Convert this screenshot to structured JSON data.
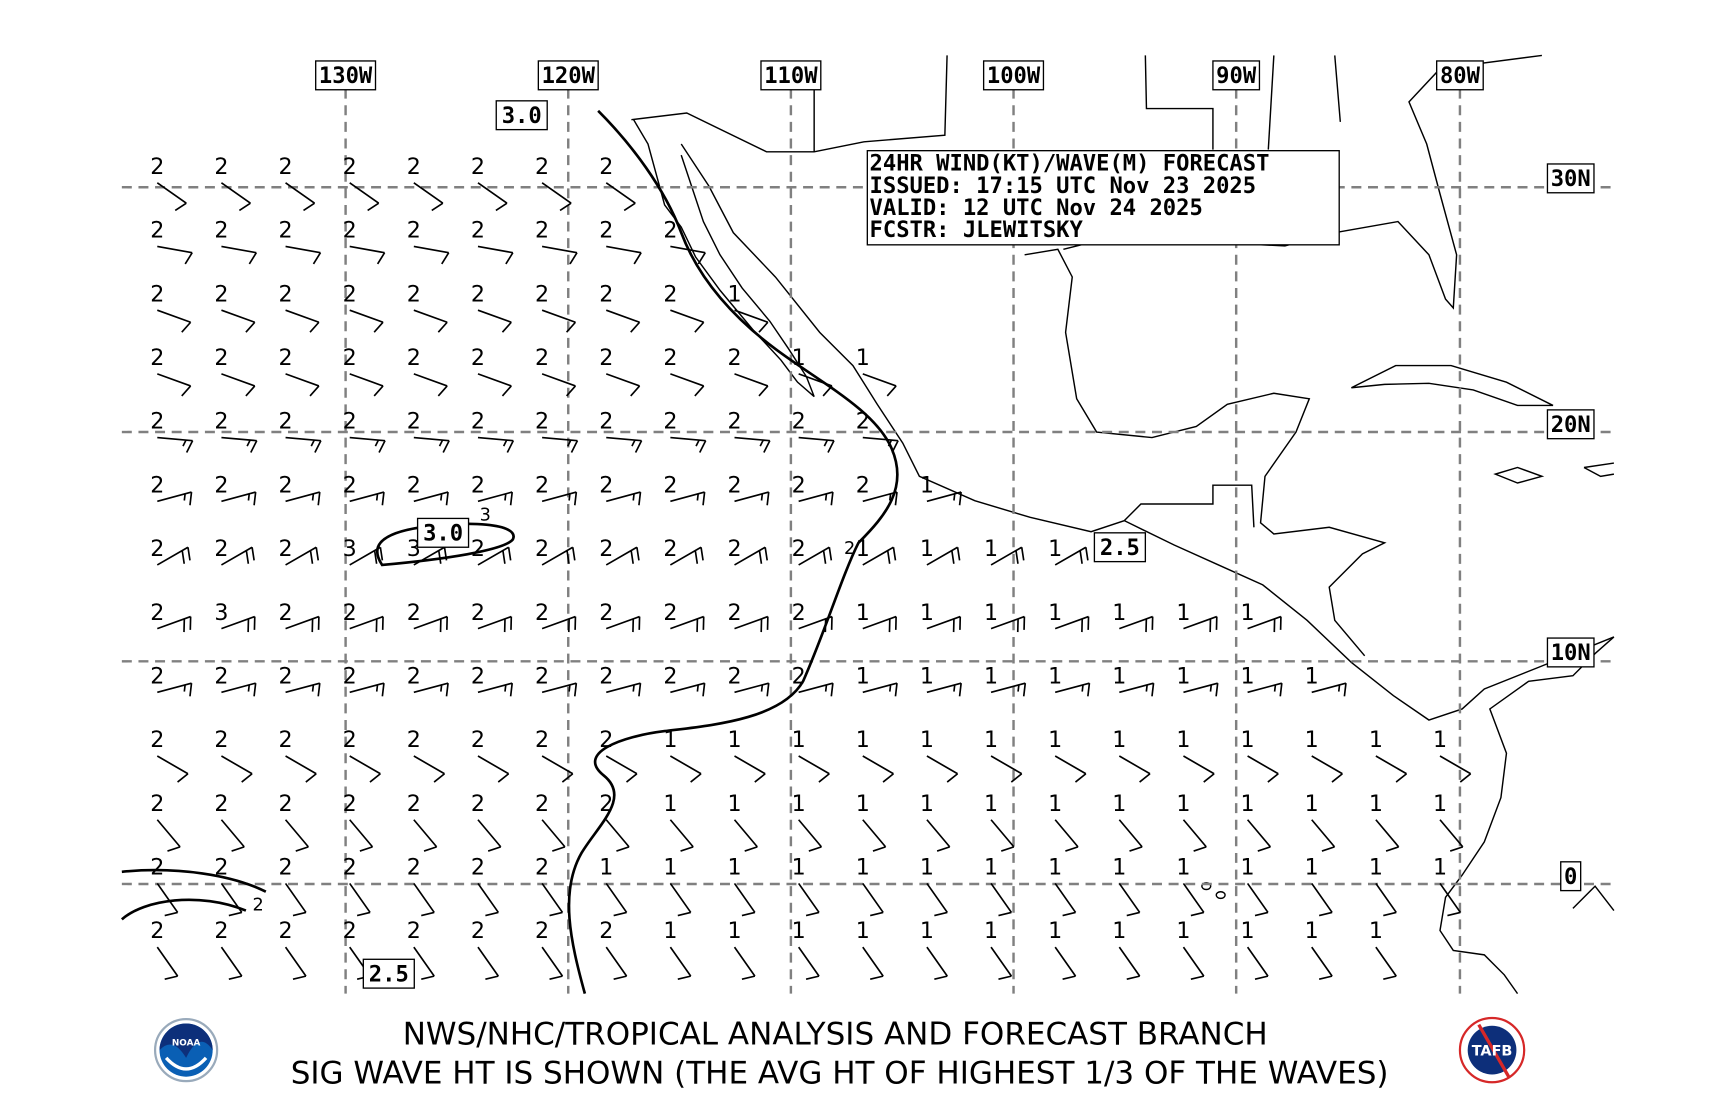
{
  "info_box": {
    "line1": "24HR WIND(KT)/WAVE(M) FORECAST",
    "line2": "ISSUED: 17:15 UTC Nov 23 2025",
    "line3": "VALID: 12 UTC Nov 24 2025",
    "line4": "FCSTR: JLEWITSKY"
  },
  "lon_labels": [
    "130W",
    "120W",
    "110W",
    "100W",
    "90W",
    "80W"
  ],
  "lat_labels": [
    "30N",
    "20N",
    "10N",
    "0"
  ],
  "contour_labels": {
    "a": "3.0",
    "b": "3.0",
    "c": "2.5",
    "d": "2.5",
    "e": "3",
    "f": "2",
    "g": "2"
  },
  "footer": {
    "line1": "NWS/NHC/TROPICAL ANALYSIS AND FORECAST BRANCH",
    "line2": "SIG WAVE HT IS SHOWN (THE AVG HT OF HIGHEST 1/3 OF THE WAVES)",
    "logo_left": "NOAA",
    "logo_right": "TAFB"
  },
  "colors": {
    "grid": "#808080",
    "ink": "#000000",
    "noaa_blue": "#0a5fb4",
    "tafb_red": "#d62828"
  },
  "stations": [
    {
      "waves": [
        2,
        2,
        2,
        2,
        2,
        2,
        2,
        2
      ],
      "wind_dir": 125,
      "wind_kt": 10
    },
    {
      "waves": [
        2,
        2,
        2,
        2,
        2,
        2,
        2,
        2,
        2
      ],
      "wind_dir": 100,
      "wind_kt": 10
    },
    {
      "waves": [
        2,
        2,
        2,
        2,
        2,
        2,
        2,
        2,
        2,
        1
      ],
      "wind_dir": 110,
      "wind_kt": 10
    },
    {
      "waves": [
        2,
        2,
        2,
        2,
        2,
        2,
        2,
        2,
        2,
        2,
        1,
        1
      ],
      "wind_dir": 110,
      "wind_kt": 10
    },
    {
      "waves": [
        2,
        2,
        2,
        2,
        2,
        2,
        2,
        2,
        2,
        2,
        2,
        2
      ],
      "wind_dir": 95,
      "wind_kt": 15
    },
    {
      "waves": [
        2,
        2,
        2,
        2,
        2,
        2,
        2,
        2,
        2,
        2,
        2,
        2,
        1
      ],
      "wind_dir": 75,
      "wind_kt": 15
    },
    {
      "waves": [
        2,
        2,
        2,
        3,
        3,
        2,
        2,
        2,
        2,
        2,
        2,
        1,
        1,
        1,
        1
      ],
      "wind_dir": 60,
      "wind_kt": 20
    },
    {
      "waves": [
        2,
        3,
        2,
        2,
        2,
        2,
        2,
        2,
        2,
        2,
        2,
        1,
        1,
        1,
        1,
        1,
        1,
        1
      ],
      "wind_dir": 70,
      "wind_kt": 20
    },
    {
      "waves": [
        2,
        2,
        2,
        2,
        2,
        2,
        2,
        2,
        2,
        2,
        2,
        1,
        1,
        1,
        1,
        1,
        1,
        1,
        1
      ],
      "wind_dir": 75,
      "wind_kt": 15
    },
    {
      "waves": [
        2,
        2,
        2,
        2,
        2,
        2,
        2,
        2,
        1,
        1,
        1,
        1,
        1,
        1,
        1,
        1,
        1,
        1,
        1,
        1,
        1
      ],
      "wind_dir": 120,
      "wind_kt": 10
    },
    {
      "waves": [
        2,
        2,
        2,
        2,
        2,
        2,
        2,
        2,
        1,
        1,
        1,
        1,
        1,
        1,
        1,
        1,
        1,
        1,
        1,
        1,
        1
      ],
      "wind_dir": 140,
      "wind_kt": 10
    },
    {
      "waves": [
        2,
        2,
        2,
        2,
        2,
        2,
        2,
        1,
        1,
        1,
        1,
        1,
        1,
        1,
        1,
        1,
        1,
        1,
        1,
        1,
        1
      ],
      "wind_dir": 145,
      "wind_kt": 10
    },
    {
      "waves": [
        2,
        2,
        2,
        2,
        2,
        2,
        2,
        2,
        1,
        1,
        1,
        1,
        1,
        1,
        1,
        1,
        1,
        1,
        1,
        1
      ],
      "wind_dir": 145,
      "wind_kt": 10
    }
  ]
}
